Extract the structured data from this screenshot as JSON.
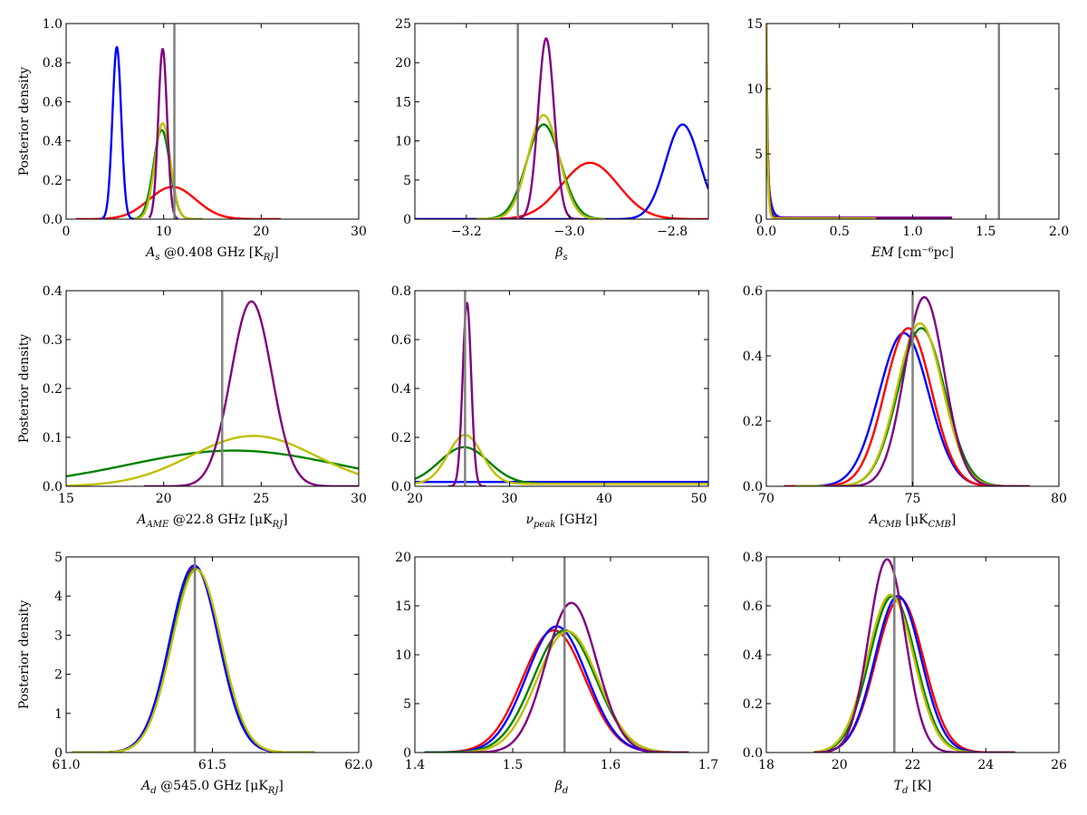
{
  "figure": {
    "colors": {
      "red": "#ff0000",
      "blue": "#0000ff",
      "green": "#008000",
      "yellow": "#bfbf00",
      "purple": "#800080",
      "truth": "#808080"
    }
  },
  "chart_data": [
    {
      "type": "line",
      "xlabel": "A_s @0.408 GHz [K_RJ]",
      "ylabel": "Posterior density",
      "xlim": [
        0,
        30
      ],
      "ylim": [
        0,
        1.0
      ],
      "xticks": [
        0,
        10,
        20,
        30
      ],
      "xtick_labels": [
        "0",
        "10",
        "20",
        "30"
      ],
      "yticks": [
        0,
        0.2,
        0.4,
        0.6,
        0.8,
        1.0
      ],
      "ytick_labels": [
        "0.0",
        "0.2",
        "0.4",
        "0.6",
        "0.8",
        "1.0"
      ],
      "truth_line": 11.1,
      "series": [
        {
          "color": "#ff0000",
          "kind": "gauss",
          "mu": 10.9,
          "sigma": 2.4,
          "peak": 0.165,
          "range": [
            1,
            22
          ]
        },
        {
          "color": "#0000ff",
          "kind": "gauss",
          "mu": 5.2,
          "sigma": 0.45,
          "peak": 0.88,
          "range": [
            3.5,
            7.5
          ]
        },
        {
          "color": "#008000",
          "kind": "gauss",
          "mu": 9.8,
          "sigma": 0.85,
          "peak": 0.455,
          "range": [
            7,
            14
          ]
        },
        {
          "color": "#bfbf00",
          "kind": "gauss",
          "mu": 9.9,
          "sigma": 0.8,
          "peak": 0.49,
          "range": [
            7,
            14
          ]
        },
        {
          "color": "#800080",
          "kind": "gauss",
          "mu": 9.9,
          "sigma": 0.45,
          "peak": 0.87,
          "range": [
            8.5,
            11.5
          ]
        }
      ]
    },
    {
      "type": "line",
      "xlabel": "β_s",
      "ylabel": "",
      "xlim": [
        -3.3,
        -2.73
      ],
      "ylim": [
        0,
        25
      ],
      "xticks": [
        -3.2,
        -3.0,
        -2.8
      ],
      "xtick_labels": [
        "−3.2",
        "−3.0",
        "−2.8"
      ],
      "yticks": [
        0,
        5,
        10,
        15,
        20,
        25
      ],
      "ytick_labels": [
        "0",
        "5",
        "10",
        "15",
        "20",
        "25"
      ],
      "truth_line": -3.1,
      "series": [
        {
          "color": "#ff0000",
          "kind": "gauss",
          "mu": -2.96,
          "sigma": 0.055,
          "peak": 7.2,
          "range": [
            -3.3,
            -2.73
          ]
        },
        {
          "color": "#0000ff",
          "kind": "gauss",
          "mu": -2.78,
          "sigma": 0.033,
          "peak": 12.1,
          "range": [
            -3.3,
            -2.73
          ]
        },
        {
          "color": "#008000",
          "kind": "gauss",
          "mu": -3.05,
          "sigma": 0.033,
          "peak": 12.1,
          "range": [
            -3.18,
            -2.93
          ]
        },
        {
          "color": "#bfbf00",
          "kind": "gauss",
          "mu": -3.05,
          "sigma": 0.03,
          "peak": 13.3,
          "range": [
            -3.18,
            -2.93
          ]
        },
        {
          "color": "#800080",
          "kind": "gauss",
          "mu": -3.045,
          "sigma": 0.0155,
          "peak": 23.1,
          "range": [
            -3.12,
            -2.98
          ]
        }
      ]
    },
    {
      "type": "line",
      "xlabel": "EM [cm⁻⁶pc]",
      "ylabel": "",
      "xlim": [
        0,
        2.0
      ],
      "ylim": [
        0,
        15
      ],
      "xticks": [
        0,
        0.5,
        1.0,
        1.5,
        2.0
      ],
      "xtick_labels": [
        "0.0",
        "0.5",
        "1.0",
        "1.5",
        "2.0"
      ],
      "yticks": [
        0,
        5,
        10,
        15
      ],
      "ytick_labels": [
        "0",
        "5",
        "10",
        "15"
      ],
      "truth_line": 1.59,
      "series": [
        {
          "color": "#0000ff",
          "kind": "decay",
          "a": 6.0,
          "tau": 0.02,
          "floor": 0.1,
          "range": [
            0,
            0.45
          ]
        },
        {
          "color": "#008000",
          "kind": "decay",
          "a": 12.0,
          "tau": 0.012,
          "floor": 0.05,
          "range": [
            0,
            0.5
          ]
        },
        {
          "color": "#800080",
          "kind": "decay",
          "a": 15.0,
          "tau": 0.01,
          "floor": 0.12,
          "range": [
            0,
            1.27
          ]
        },
        {
          "color": "#bfbf00",
          "kind": "decay",
          "a": 15.0,
          "tau": 0.008,
          "floor": 0.06,
          "range": [
            0,
            0.75
          ]
        }
      ]
    },
    {
      "type": "line",
      "xlabel": "A_AME @22.8 GHz [μK_RJ]",
      "ylabel": "Posterior density",
      "xlim": [
        15,
        30
      ],
      "ylim": [
        0,
        0.4
      ],
      "xticks": [
        15,
        20,
        25,
        30
      ],
      "xtick_labels": [
        "15",
        "20",
        "25",
        "30"
      ],
      "yticks": [
        0,
        0.1,
        0.2,
        0.3,
        0.4
      ],
      "ytick_labels": [
        "0.0",
        "0.1",
        "0.2",
        "0.3",
        "0.4"
      ],
      "truth_line": 23.0,
      "series": [
        {
          "color": "#008000",
          "kind": "gauss",
          "mu": 23.6,
          "sigma": 5.4,
          "peak": 0.073,
          "range": [
            15,
            30
          ]
        },
        {
          "color": "#bfbf00",
          "kind": "gauss",
          "mu": 24.6,
          "sigma": 3.2,
          "peak": 0.103,
          "range": [
            15,
            30
          ]
        },
        {
          "color": "#800080",
          "kind": "gauss",
          "mu": 24.5,
          "sigma": 1.05,
          "peak": 0.378,
          "range": [
            19,
            30
          ]
        }
      ]
    },
    {
      "type": "line",
      "xlabel": "ν_peak [GHz]",
      "ylabel": "",
      "xlim": [
        20,
        51
      ],
      "ylim": [
        0,
        0.8
      ],
      "xticks": [
        20,
        30,
        40,
        50
      ],
      "xtick_labels": [
        "20",
        "30",
        "40",
        "50"
      ],
      "yticks": [
        0,
        0.2,
        0.4,
        0.6,
        0.8
      ],
      "ytick_labels": [
        "0.0",
        "0.2",
        "0.4",
        "0.6",
        "0.8"
      ],
      "truth_line": 25.3,
      "series": [
        {
          "color": "#0000ff",
          "kind": "flat",
          "value": 0.018,
          "range": [
            20,
            51
          ]
        },
        {
          "color": "#008000",
          "kind": "gauss_floor",
          "mu": 25.2,
          "sigma": 2.6,
          "peak": 0.15,
          "floor": 0.01,
          "range": [
            20,
            51
          ]
        },
        {
          "color": "#bfbf00",
          "kind": "gauss_floor",
          "mu": 25.3,
          "sigma": 1.8,
          "peak": 0.2,
          "floor": 0.01,
          "range": [
            20,
            51
          ]
        },
        {
          "color": "#800080",
          "kind": "gauss",
          "mu": 25.5,
          "sigma": 0.45,
          "peak": 0.75,
          "range": [
            23.5,
            27.5
          ]
        }
      ]
    },
    {
      "type": "line",
      "xlabel": "A_CMB [μK_CMB]",
      "ylabel": "",
      "xlim": [
        70,
        80
      ],
      "ylim": [
        0,
        0.6
      ],
      "xticks": [
        70,
        75,
        80
      ],
      "xtick_labels": [
        "70",
        "75",
        "80"
      ],
      "yticks": [
        0,
        0.2,
        0.4,
        0.6
      ],
      "ytick_labels": [
        "0.0",
        "0.2",
        "0.4",
        "0.6"
      ],
      "truth_line": 75.0,
      "series": [
        {
          "color": "#0000ff",
          "kind": "gauss",
          "mu": 74.7,
          "sigma": 0.85,
          "peak": 0.47,
          "range": [
            70.6,
            78.5
          ]
        },
        {
          "color": "#ff0000",
          "kind": "gauss",
          "mu": 74.85,
          "sigma": 0.8,
          "peak": 0.485,
          "range": [
            70.6,
            78.5
          ]
        },
        {
          "color": "#008000",
          "kind": "gauss",
          "mu": 75.3,
          "sigma": 0.8,
          "peak": 0.485,
          "range": [
            71,
            79
          ]
        },
        {
          "color": "#bfbf00",
          "kind": "gauss",
          "mu": 75.25,
          "sigma": 0.78,
          "peak": 0.5,
          "range": [
            71,
            79
          ]
        },
        {
          "color": "#800080",
          "kind": "gauss",
          "mu": 75.4,
          "sigma": 0.68,
          "peak": 0.58,
          "range": [
            72,
            79
          ]
        }
      ]
    },
    {
      "type": "line",
      "xlabel": "A_d @545.0 GHz [μK_RJ]",
      "ylabel": "Posterior density",
      "xlim": [
        61.0,
        62.0
      ],
      "ylim": [
        0,
        5
      ],
      "xticks": [
        61.0,
        61.5,
        62.0
      ],
      "xtick_labels": [
        "61.0",
        "61.5",
        "62.0"
      ],
      "yticks": [
        0,
        1,
        2,
        3,
        4,
        5
      ],
      "ytick_labels": [
        "0",
        "1",
        "2",
        "3",
        "4",
        "5"
      ],
      "truth_line": 61.44,
      "series": [
        {
          "color": "#ff0000",
          "kind": "gauss",
          "mu": 61.44,
          "sigma": 0.083,
          "peak": 4.75,
          "range": [
            61.02,
            61.85
          ]
        },
        {
          "color": "#008000",
          "kind": "gauss",
          "mu": 61.443,
          "sigma": 0.083,
          "peak": 4.7,
          "range": [
            61.02,
            61.85
          ]
        },
        {
          "color": "#0000ff",
          "kind": "gauss",
          "mu": 61.438,
          "sigma": 0.083,
          "peak": 4.78,
          "range": [
            61.02,
            61.85
          ]
        },
        {
          "color": "#bfbf00",
          "kind": "gauss",
          "mu": 61.446,
          "sigma": 0.084,
          "peak": 4.68,
          "range": [
            61.02,
            61.85
          ]
        }
      ]
    },
    {
      "type": "line",
      "xlabel": "β_d",
      "ylabel": "",
      "xlim": [
        1.4,
        1.7
      ],
      "ylim": [
        0,
        20
      ],
      "xticks": [
        1.4,
        1.5,
        1.6,
        1.7
      ],
      "xtick_labels": [
        "1.4",
        "1.5",
        "1.6",
        "1.7"
      ],
      "yticks": [
        0,
        5,
        10,
        15,
        20
      ],
      "ytick_labels": [
        "0",
        "5",
        "10",
        "15",
        "20"
      ],
      "truth_line": 1.553,
      "series": [
        {
          "color": "#ff0000",
          "kind": "gauss",
          "mu": 1.542,
          "sigma": 0.032,
          "peak": 12.5,
          "range": [
            1.41,
            1.68
          ]
        },
        {
          "color": "#0000ff",
          "kind": "gauss",
          "mu": 1.545,
          "sigma": 0.031,
          "peak": 12.9,
          "range": [
            1.41,
            1.68
          ]
        },
        {
          "color": "#008000",
          "kind": "gauss",
          "mu": 1.553,
          "sigma": 0.032,
          "peak": 12.5,
          "range": [
            1.41,
            1.68
          ]
        },
        {
          "color": "#bfbf00",
          "kind": "gauss",
          "mu": 1.556,
          "sigma": 0.031,
          "peak": 12.4,
          "range": [
            1.45,
            1.68
          ]
        },
        {
          "color": "#800080",
          "kind": "gauss",
          "mu": 1.56,
          "sigma": 0.026,
          "peak": 15.3,
          "range": [
            1.45,
            1.68
          ]
        }
      ]
    },
    {
      "type": "line",
      "xlabel": "T_d [K]",
      "ylabel": "",
      "xlim": [
        18,
        26
      ],
      "ylim": [
        0,
        0.8
      ],
      "xticks": [
        18,
        20,
        22,
        24,
        26
      ],
      "xtick_labels": [
        "18",
        "20",
        "22",
        "24",
        "26"
      ],
      "yticks": [
        0,
        0.2,
        0.4,
        0.6,
        0.8
      ],
      "ytick_labels": [
        "0.0",
        "0.2",
        "0.4",
        "0.6",
        "0.8"
      ],
      "truth_line": 21.5,
      "series": [
        {
          "color": "#ff0000",
          "kind": "gauss",
          "mu": 21.65,
          "sigma": 0.65,
          "peak": 0.63,
          "range": [
            19.3,
            24.8
          ]
        },
        {
          "color": "#0000ff",
          "kind": "gauss",
          "mu": 21.6,
          "sigma": 0.63,
          "peak": 0.64,
          "range": [
            19.3,
            24.8
          ]
        },
        {
          "color": "#008000",
          "kind": "gauss",
          "mu": 21.45,
          "sigma": 0.63,
          "peak": 0.64,
          "range": [
            19.3,
            24.8
          ]
        },
        {
          "color": "#bfbf00",
          "kind": "gauss",
          "mu": 21.4,
          "sigma": 0.63,
          "peak": 0.645,
          "range": [
            19.3,
            24.8
          ]
        },
        {
          "color": "#800080",
          "kind": "gauss",
          "mu": 21.3,
          "sigma": 0.5,
          "peak": 0.79,
          "range": [
            19.3,
            24.8
          ]
        }
      ]
    }
  ]
}
